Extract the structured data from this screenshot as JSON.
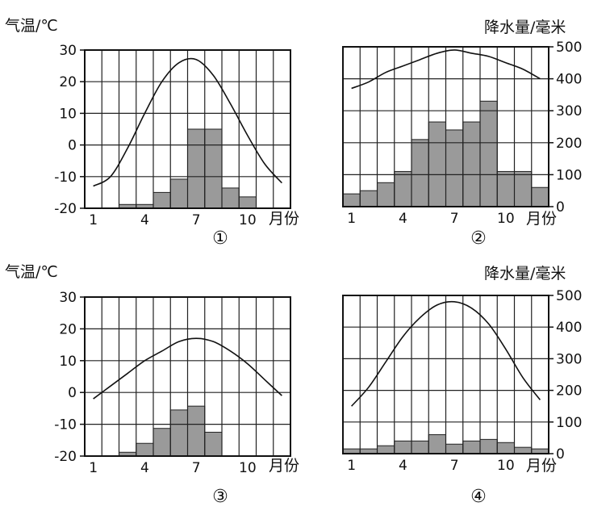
{
  "labels": {
    "temp_axis": "气温/℃",
    "precip_axis": "降水量/毫米",
    "month_axis": "月份"
  },
  "colors": {
    "bar_fill": "#9a9a9a",
    "line": "#111111",
    "grid": "#222222"
  },
  "chart_data": [
    {
      "type": "bar+line",
      "title": "①",
      "categories": [
        "1",
        "2",
        "3",
        "4",
        "5",
        "6",
        "7",
        "8",
        "9",
        "10",
        "11",
        "12"
      ],
      "x_tick_labels": [
        "1",
        "4",
        "7",
        "10"
      ],
      "temp_ylim": [
        -20,
        30
      ],
      "temp_ticks": [
        "30",
        "20",
        "10",
        "0",
        "-10",
        "-20"
      ],
      "temperature": [
        -13,
        -10,
        -1,
        10,
        20,
        26,
        27,
        22,
        13,
        3,
        -6,
        -12
      ],
      "precipitation": [
        0,
        0,
        12,
        12,
        50,
        92,
        250,
        250,
        64,
        36,
        0,
        0
      ]
    },
    {
      "type": "bar+line",
      "title": "②",
      "categories": [
        "1",
        "2",
        "3",
        "4",
        "5",
        "6",
        "7",
        "8",
        "9",
        "10",
        "11",
        "12"
      ],
      "x_tick_labels": [
        "1",
        "4",
        "7",
        "10"
      ],
      "precip_ylim": [
        0,
        500
      ],
      "precip_ticks": [
        "500",
        "400",
        "300",
        "200",
        "100",
        "0"
      ],
      "temperature": [
        17,
        19,
        22,
        24,
        26,
        28,
        29,
        28,
        27,
        25,
        23,
        20
      ],
      "precipitation": [
        40,
        50,
        75,
        110,
        210,
        265,
        240,
        265,
        330,
        110,
        110,
        60
      ]
    },
    {
      "type": "bar+line",
      "title": "③",
      "categories": [
        "1",
        "2",
        "3",
        "4",
        "5",
        "6",
        "7",
        "8",
        "9",
        "10",
        "11",
        "12"
      ],
      "x_tick_labels": [
        "1",
        "4",
        "7",
        "10"
      ],
      "temp_ylim": [
        -20,
        30
      ],
      "temp_ticks": [
        "30",
        "20",
        "10",
        "0",
        "-10",
        "-20"
      ],
      "temperature": [
        -2,
        2,
        6,
        10,
        13,
        16,
        17,
        16,
        13,
        9,
        4,
        -1
      ],
      "precipitation": [
        0,
        0,
        12,
        40,
        87,
        145,
        157,
        75,
        0,
        0,
        0,
        0
      ]
    },
    {
      "type": "bar+line",
      "title": "④",
      "categories": [
        "1",
        "2",
        "3",
        "4",
        "5",
        "6",
        "7",
        "8",
        "9",
        "10",
        "11",
        "12"
      ],
      "x_tick_labels": [
        "1",
        "4",
        "7",
        "10"
      ],
      "precip_ylim": [
        0,
        500
      ],
      "precip_ticks": [
        "500",
        "400",
        "300",
        "200",
        "100",
        "0"
      ],
      "temperature": [
        -5,
        1,
        9,
        17,
        23,
        27,
        28,
        26,
        21,
        13,
        4,
        -3
      ],
      "precipitation": [
        15,
        15,
        25,
        40,
        40,
        60,
        30,
        40,
        45,
        35,
        20,
        15
      ]
    }
  ]
}
